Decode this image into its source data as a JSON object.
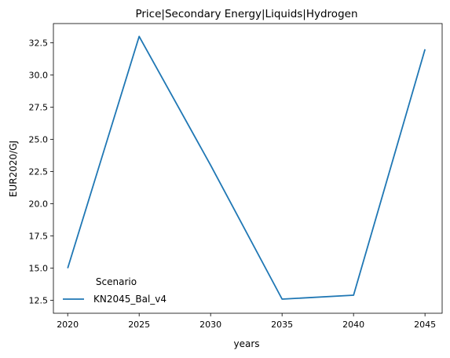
{
  "chart_data": {
    "type": "line",
    "title": "Price|Secondary Energy|Liquids|Hydrogen",
    "xlabel": "years",
    "ylabel": "EUR2020/GJ",
    "x": [
      2020,
      2025,
      2030,
      2035,
      2040,
      2045
    ],
    "series": [
      {
        "name": "KN2045_Bal_v4",
        "color": "#1f77b4",
        "values": [
          15.0,
          33.0,
          23.0,
          12.6,
          12.9,
          32.0
        ]
      }
    ],
    "xticks": [
      "2020",
      "2025",
      "2030",
      "2035",
      "2040",
      "2045"
    ],
    "yticks": [
      "12.5",
      "15.0",
      "17.5",
      "20.0",
      "22.5",
      "25.0",
      "27.5",
      "30.0",
      "32.5"
    ],
    "xlim": [
      2019.0,
      2046.2
    ],
    "ylim": [
      11.5,
      34.0
    ],
    "grid": false,
    "legend": {
      "title": "Scenario",
      "placement": "lower-left"
    }
  }
}
